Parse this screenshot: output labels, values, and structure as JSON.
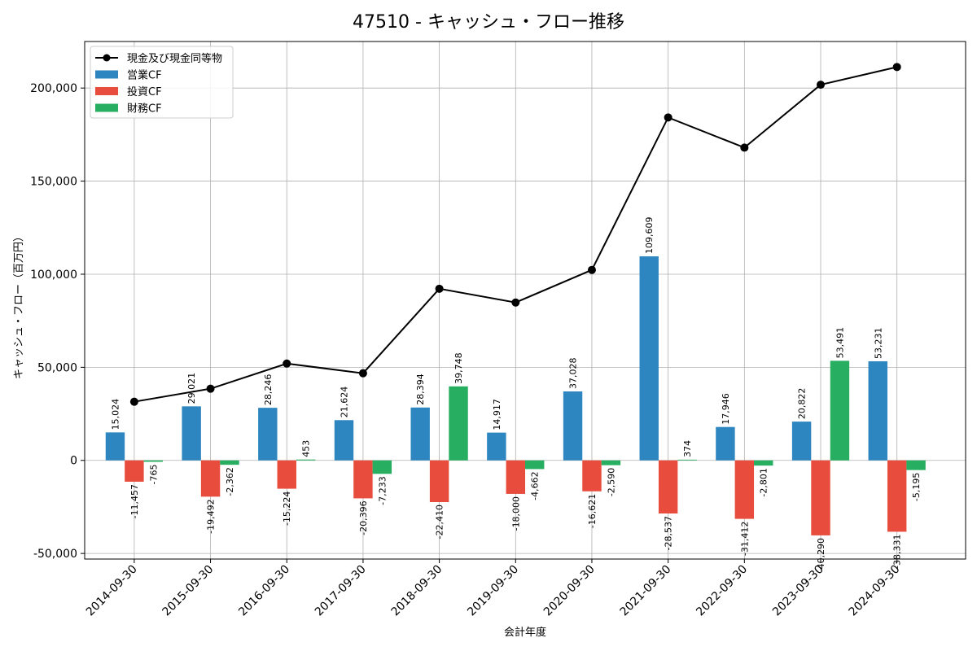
{
  "chart_data": {
    "type": "bar",
    "title": "47510 - キャッシュ・フロー推移",
    "xlabel": "会計年度",
    "ylabel": "キャッシュ・フロー（百万円）",
    "categories": [
      "2014-09-30",
      "2015-09-30",
      "2016-09-30",
      "2017-09-30",
      "2018-09-30",
      "2019-09-30",
      "2020-09-30",
      "2021-09-30",
      "2022-09-30",
      "2023-09-30",
      "2024-09-30"
    ],
    "series": [
      {
        "name": "営業CF",
        "kind": "bar",
        "color": "#2e86c1",
        "values": [
          15024,
          29021,
          28246,
          21624,
          28394,
          14917,
          37028,
          109609,
          17946,
          20822,
          53231
        ],
        "labels": [
          "15,024",
          "29,021",
          "28,246",
          "21,624",
          "28,394",
          "14,917",
          "37,028",
          "109,609",
          "17,946",
          "20,822",
          "53,231"
        ]
      },
      {
        "name": "投資CF",
        "kind": "bar",
        "color": "#e74c3c",
        "values": [
          -11457,
          -19492,
          -15224,
          -20396,
          -22410,
          -18000,
          -16621,
          -28537,
          -31412,
          -40290,
          -38331
        ],
        "labels": [
          "-11,457",
          "-19,492",
          "-15,224",
          "-20,396",
          "-22,410",
          "-18,000",
          "-16,621",
          "-28,537",
          "-31,412",
          "-40,290",
          "-38,331"
        ]
      },
      {
        "name": "財務CF",
        "kind": "bar",
        "color": "#27ae60",
        "values": [
          -765,
          -2362,
          453,
          -7233,
          39748,
          -4662,
          -2590,
          374,
          -2801,
          53491,
          -5195
        ],
        "labels": [
          "-765",
          "-2,362",
          "453",
          "-7,233",
          "39,748",
          "-4,662",
          "-2,590",
          "374",
          "-2,801",
          "53,491",
          "-5,195"
        ]
      },
      {
        "name": "現金及び現金同等物",
        "kind": "line",
        "color": "#000000",
        "values": [
          31500,
          38500,
          52000,
          46800,
          92200,
          84800,
          102300,
          184200,
          168000,
          201800,
          211300
        ]
      }
    ],
    "yticks": [
      -50000,
      0,
      50000,
      100000,
      150000,
      200000
    ],
    "ytick_labels": [
      "-50,000",
      "0",
      "50,000",
      "100,000",
      "150,000",
      "200,000"
    ],
    "ylim": [
      -53000,
      225000
    ],
    "grid": true,
    "legend": "top-left"
  }
}
